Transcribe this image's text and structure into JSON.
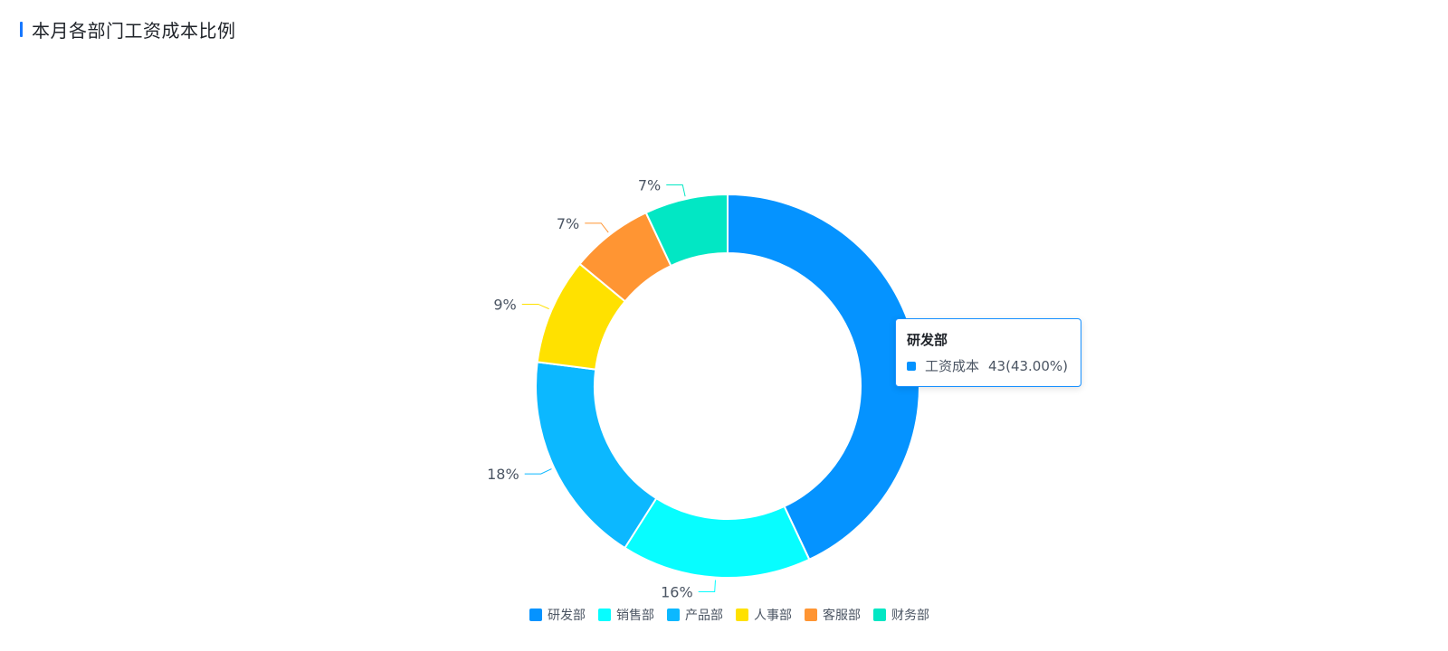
{
  "header": {
    "title": "本月各部门工资成本比例"
  },
  "chart_data": {
    "type": "pie",
    "variant": "donut",
    "title": "本月各部门工资成本比例",
    "series_name": "工资成本",
    "categories": [
      "研发部",
      "销售部",
      "产品部",
      "人事部",
      "客服部",
      "财务部"
    ],
    "values": [
      43,
      16,
      18,
      9,
      7,
      7
    ],
    "labels": [
      "43%",
      "16%",
      "18%",
      "9%",
      "7%",
      "7%"
    ],
    "colors": [
      "#0593ff",
      "#07fdff",
      "#0cb8ff",
      "#ffe100",
      "#ff9533",
      "#02e7c4"
    ],
    "legend_position": "bottom"
  },
  "tooltip": {
    "title": "研发部",
    "series": "工资成本",
    "value": "43(43.00%)",
    "color": "#0593ff"
  }
}
